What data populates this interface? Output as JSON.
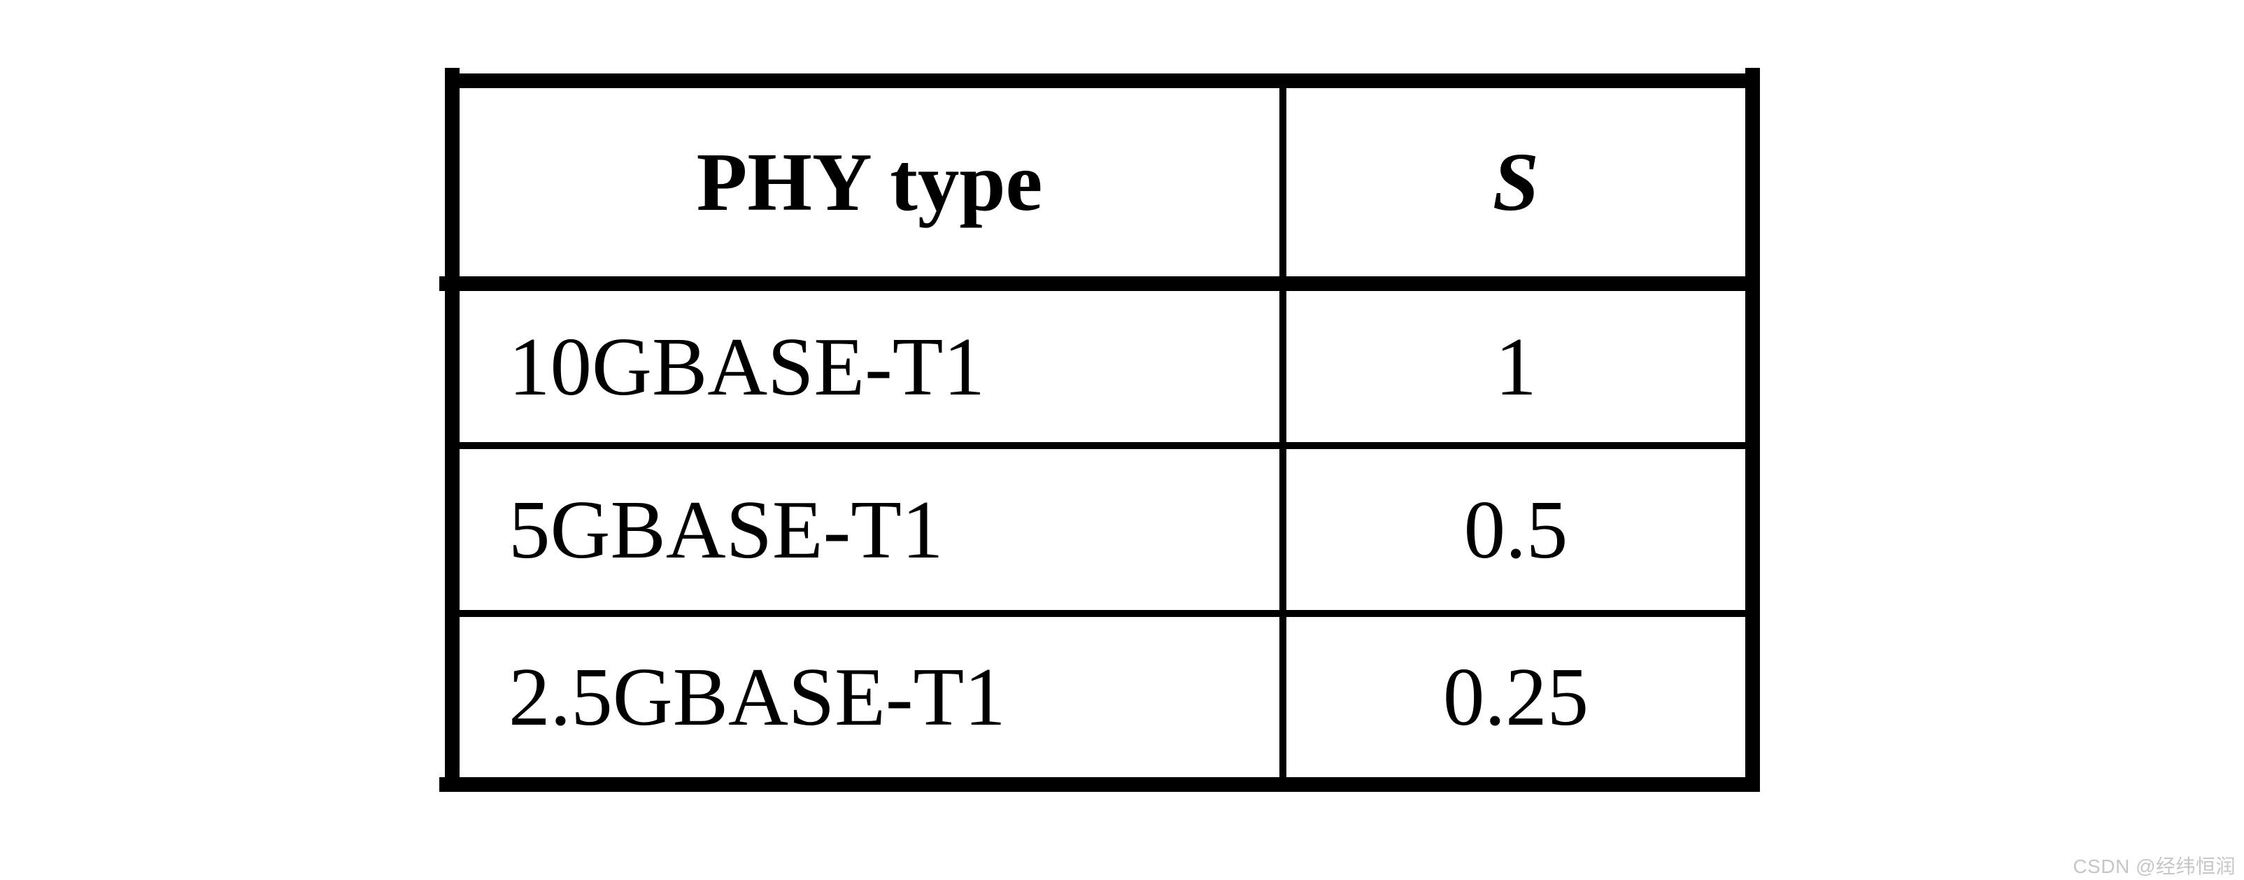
{
  "table": {
    "columns": [
      {
        "label": "PHY type"
      },
      {
        "label": "S"
      }
    ],
    "rows": [
      {
        "phy_type": "10GBASE-T1",
        "s": "1"
      },
      {
        "phy_type": "5GBASE-T1",
        "s": "0.5"
      },
      {
        "phy_type": "2.5GBASE-T1",
        "s": "0.25"
      }
    ]
  },
  "watermark": {
    "text": "CSDN @经纬恒润"
  },
  "colors": {
    "background": "#ffffff",
    "border": "#000000",
    "text": "#000000",
    "watermark": "#c6c6c6"
  }
}
